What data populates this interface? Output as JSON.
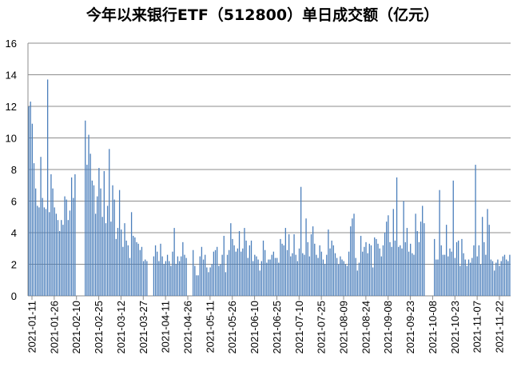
{
  "chart_data": {
    "type": "bar",
    "title": "今年以来银行ETF（512800）单日成交额（亿元）",
    "xlabel": "",
    "ylabel": "",
    "ylim": [
      0,
      16
    ],
    "yticks": [
      "0",
      "2",
      "4",
      "6",
      "8",
      "10",
      "12",
      "14",
      "16"
    ],
    "tick_labels": [
      "2021-01-11",
      "2021-01-26",
      "2021-02-10",
      "2021-02-25",
      "2021-03-12",
      "2021-03-27",
      "2021-04-11",
      "2021-04-26",
      "2021-05-11",
      "2021-05-26",
      "2021-06-10",
      "2021-06-25",
      "2021-07-10",
      "2021-07-25",
      "2021-08-09",
      "2021-08-24",
      "2021-09-08",
      "2021-09-23",
      "2021-10-08",
      "2021-10-23",
      "2021-11-07",
      "2021-11-22"
    ],
    "grid": "y-major",
    "legend": "none",
    "bar_color": "#4a7ebb",
    "series": [
      {
        "values": [
          12.0,
          12.3,
          10.9,
          8.4,
          6.8,
          5.7,
          5.6,
          8.8,
          6.2,
          5.6,
          5.5,
          13.7,
          5.3,
          7.7,
          6.8,
          5.6,
          5.2,
          4.8,
          4.1,
          4.8,
          4.5,
          6.3,
          6.1,
          4.8,
          5.4,
          7.5,
          6.2,
          7.7,
          0,
          0,
          0,
          0,
          0,
          11.1,
          8.3,
          10.2,
          9.0,
          7.3,
          7.0,
          5.2,
          6.3,
          8.1,
          6.8,
          5.0,
          7.9,
          4.6,
          5.7,
          9.3,
          4.7,
          7.0,
          6.1,
          3.6,
          4.3,
          6.7,
          4.2,
          3.1,
          4.6,
          3.5,
          3.2,
          2.4,
          5.3,
          3.8,
          3.7,
          3.4,
          3.3,
          2.9,
          3.1,
          2.2,
          2.3,
          2.2,
          0,
          0,
          0,
          2.5,
          3.2,
          2.8,
          2.2,
          3.3,
          2.5,
          2.0,
          2.2,
          2.6,
          2.2,
          1.9,
          2.8,
          4.3,
          2.0,
          2.5,
          2.2,
          2.5,
          3.4,
          2.6,
          2.4,
          0,
          0,
          0,
          2.9,
          1.9,
          1.3,
          1.3,
          2.5,
          3.1,
          2.3,
          2.6,
          1.8,
          1.5,
          1.8,
          2.0,
          2.8,
          2.9,
          3.1,
          1.9,
          2.0,
          2.6,
          3.8,
          1.5,
          2.6,
          2.9,
          4.6,
          3.6,
          3.2,
          2.8,
          3.0,
          4.1,
          2.8,
          3.0,
          4.3,
          3.5,
          2.4,
          3.2,
          3.5,
          2.2,
          2.6,
          2.5,
          2.3,
          1.6,
          2.2,
          3.5,
          2.9,
          2.1,
          2.3,
          2.3,
          2.6,
          2.8,
          2.4,
          2.4,
          2.1,
          3.6,
          3.3,
          3.2,
          4.3,
          2.9,
          3.9,
          2.5,
          2.7,
          3.9,
          2.6,
          2.2,
          3.0,
          6.9,
          2.7,
          2.6,
          4.9,
          3.4,
          2.5,
          3.9,
          4.4,
          3.3,
          2.6,
          2.4,
          3.2,
          2.8,
          2.3,
          2.0,
          2.6,
          4.2,
          3.0,
          3.5,
          3.2,
          2.7,
          2.4,
          2.0,
          2.5,
          2.3,
          2.2,
          2.0,
          1.9,
          2.8,
          4.4,
          4.9,
          5.2,
          2.4,
          1.6,
          2.1,
          3.8,
          2.8,
          3.1,
          3.4,
          2.7,
          3.3,
          3.2,
          1.8,
          3.7,
          3.6,
          3.3,
          3.0,
          2.5,
          3.2,
          4.0,
          4.7,
          5.1,
          3.4,
          3.1,
          5.5,
          3.5,
          7.5,
          3.1,
          3.2,
          3.0,
          6.0,
          3.4,
          4.3,
          2.8,
          3.3,
          2.7,
          2.6,
          5.2,
          4.1,
          3.4,
          4.7,
          5.7,
          4.6,
          0,
          0,
          0,
          0,
          0,
          3.6,
          2.3,
          2.3,
          6.7,
          3.2,
          2.6,
          2.6,
          4.5,
          2.5,
          3.0,
          2.8,
          7.3,
          2.4,
          3.4,
          3.5,
          1.9,
          3.6,
          2.7,
          2.3,
          1.9,
          2.3,
          2.1,
          2.4,
          3.2,
          8.3,
          2.5,
          3.2,
          2.0,
          5.0,
          3.4,
          2.6,
          5.5,
          4.5,
          2.3,
          2.2,
          1.6,
          2.1,
          2.3,
          1.9,
          2.2,
          2.5,
          2.6,
          2.3,
          2.2,
          2.6
        ]
      }
    ]
  }
}
